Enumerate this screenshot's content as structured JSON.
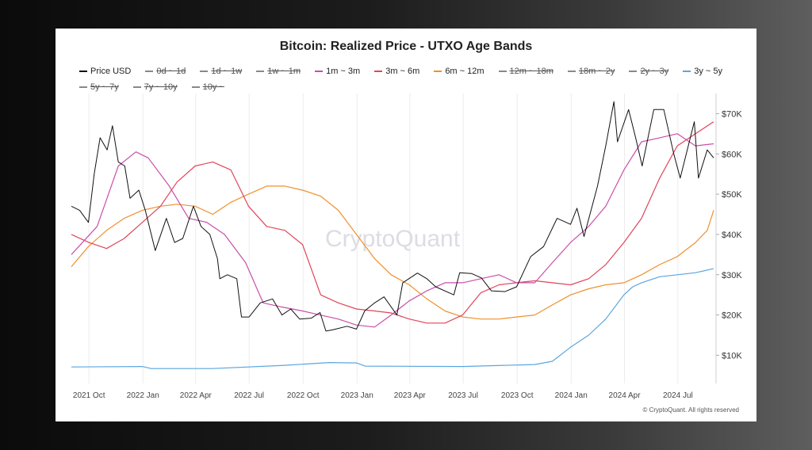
{
  "chart_data": {
    "type": "line",
    "title": "Bitcoin: Realized Price - UTXO Age Bands",
    "x_ticks": [
      "2021 Oct",
      "2022 Jan",
      "2022 Apr",
      "2022 Jul",
      "2022 Oct",
      "2023 Jan",
      "2023 Apr",
      "2023 Jul",
      "2023 Oct",
      "2024 Jan",
      "2024 Apr",
      "2024 Jul"
    ],
    "x_range": [
      "2021-09-01",
      "2024-08-31"
    ],
    "y_ticks": [
      "$10K",
      "$20K",
      "$30K",
      "$40K",
      "$50K",
      "$60K",
      "$70K"
    ],
    "y_tick_values": [
      10000,
      20000,
      30000,
      40000,
      50000,
      60000,
      70000
    ],
    "ylim": [
      3000,
      75000
    ],
    "grid": "vertical",
    "legend_position": "top",
    "legend": [
      {
        "name": "Price USD",
        "active": true,
        "color": "#111111"
      },
      {
        "name": "0d ~ 1d",
        "active": false,
        "color": "#888888"
      },
      {
        "name": "1d ~ 1w",
        "active": false,
        "color": "#888888"
      },
      {
        "name": "1w ~ 1m",
        "active": false,
        "color": "#888888"
      },
      {
        "name": "1m ~ 3m",
        "active": true,
        "color": "#c94fa8"
      },
      {
        "name": "3m ~ 6m",
        "active": true,
        "color": "#e0455a"
      },
      {
        "name": "6m ~ 12m",
        "active": true,
        "color": "#f0902e"
      },
      {
        "name": "12m ~ 18m",
        "active": false,
        "color": "#888888"
      },
      {
        "name": "18m ~ 2y",
        "active": false,
        "color": "#888888"
      },
      {
        "name": "2y ~ 3y",
        "active": false,
        "color": "#888888"
      },
      {
        "name": "3y ~ 5y",
        "active": true,
        "color": "#5aa6e0"
      },
      {
        "name": "5y ~ 7y",
        "active": false,
        "color": "#888888"
      },
      {
        "name": "7y ~ 10y",
        "active": false,
        "color": "#888888"
      },
      {
        "name": "10y ~",
        "active": false,
        "color": "#888888"
      }
    ],
    "series": [
      {
        "name": "Price USD",
        "color": "#111111",
        "points": [
          [
            "2021-09-01",
            47000
          ],
          [
            "2021-09-15",
            46000
          ],
          [
            "2021-09-30",
            43000
          ],
          [
            "2021-10-10",
            55000
          ],
          [
            "2021-10-20",
            64000
          ],
          [
            "2021-11-01",
            61000
          ],
          [
            "2021-11-10",
            67000
          ],
          [
            "2021-11-20",
            58000
          ],
          [
            "2021-12-01",
            57000
          ],
          [
            "2021-12-10",
            49000
          ],
          [
            "2021-12-25",
            51000
          ],
          [
            "2022-01-05",
            46000
          ],
          [
            "2022-01-22",
            36000
          ],
          [
            "2022-02-10",
            44000
          ],
          [
            "2022-02-24",
            38000
          ],
          [
            "2022-03-10",
            39000
          ],
          [
            "2022-03-28",
            47000
          ],
          [
            "2022-04-10",
            42000
          ],
          [
            "2022-04-25",
            40000
          ],
          [
            "2022-05-08",
            34000
          ],
          [
            "2022-05-12",
            29000
          ],
          [
            "2022-05-25",
            30000
          ],
          [
            "2022-06-10",
            29000
          ],
          [
            "2022-06-18",
            19500
          ],
          [
            "2022-07-01",
            19500
          ],
          [
            "2022-07-20",
            23000
          ],
          [
            "2022-08-10",
            24000
          ],
          [
            "2022-08-26",
            20000
          ],
          [
            "2022-09-10",
            21500
          ],
          [
            "2022-09-25",
            19000
          ],
          [
            "2022-10-15",
            19200
          ],
          [
            "2022-10-30",
            20600
          ],
          [
            "2022-11-09",
            16000
          ],
          [
            "2022-11-20",
            16300
          ],
          [
            "2022-12-15",
            17200
          ],
          [
            "2022-12-31",
            16500
          ],
          [
            "2023-01-14",
            21000
          ],
          [
            "2023-01-31",
            23000
          ],
          [
            "2023-02-16",
            24500
          ],
          [
            "2023-03-10",
            20000
          ],
          [
            "2023-03-20",
            28000
          ],
          [
            "2023-04-14",
            30400
          ],
          [
            "2023-04-30",
            29000
          ],
          [
            "2023-05-15",
            27000
          ],
          [
            "2023-06-15",
            25000
          ],
          [
            "2023-06-25",
            30500
          ],
          [
            "2023-07-15",
            30300
          ],
          [
            "2023-08-01",
            29200
          ],
          [
            "2023-08-18",
            26000
          ],
          [
            "2023-09-10",
            25800
          ],
          [
            "2023-09-30",
            27000
          ],
          [
            "2023-10-24",
            34500
          ],
          [
            "2023-11-15",
            37000
          ],
          [
            "2023-12-08",
            44000
          ],
          [
            "2023-12-31",
            42500
          ],
          [
            "2024-01-11",
            46500
          ],
          [
            "2024-01-23",
            39500
          ],
          [
            "2024-02-15",
            52000
          ],
          [
            "2024-02-29",
            62000
          ],
          [
            "2024-03-14",
            73000
          ],
          [
            "2024-03-20",
            63000
          ],
          [
            "2024-04-08",
            71000
          ],
          [
            "2024-04-20",
            64000
          ],
          [
            "2024-05-01",
            57000
          ],
          [
            "2024-05-21",
            71000
          ],
          [
            "2024-06-07",
            71000
          ],
          [
            "2024-06-24",
            60000
          ],
          [
            "2024-07-05",
            54000
          ],
          [
            "2024-07-29",
            68000
          ],
          [
            "2024-08-05",
            54000
          ],
          [
            "2024-08-20",
            61000
          ],
          [
            "2024-08-31",
            59000
          ]
        ]
      },
      {
        "name": "1m ~ 3m",
        "color": "#c94fa8",
        "points": [
          [
            "2021-09-01",
            35000
          ],
          [
            "2021-10-15",
            42000
          ],
          [
            "2021-11-20",
            57000
          ],
          [
            "2021-12-20",
            60500
          ],
          [
            "2022-01-10",
            59000
          ],
          [
            "2022-02-15",
            52000
          ],
          [
            "2022-03-20",
            44000
          ],
          [
            "2022-04-20",
            43000
          ],
          [
            "2022-05-20",
            40000
          ],
          [
            "2022-06-25",
            33000
          ],
          [
            "2022-07-25",
            23000
          ],
          [
            "2022-08-25",
            22000
          ],
          [
            "2022-09-30",
            21000
          ],
          [
            "2022-10-30",
            20000
          ],
          [
            "2022-11-30",
            19000
          ],
          [
            "2022-12-31",
            17500
          ],
          [
            "2023-01-31",
            17000
          ],
          [
            "2023-02-28",
            20000
          ],
          [
            "2023-03-31",
            23500
          ],
          [
            "2023-04-30",
            26000
          ],
          [
            "2023-05-31",
            28000
          ],
          [
            "2023-06-30",
            28000
          ],
          [
            "2023-07-31",
            29000
          ],
          [
            "2023-08-31",
            30000
          ],
          [
            "2023-09-30",
            28000
          ],
          [
            "2023-10-31",
            28000
          ],
          [
            "2023-11-30",
            33000
          ],
          [
            "2023-12-31",
            38000
          ],
          [
            "2024-01-31",
            42000
          ],
          [
            "2024-02-29",
            47000
          ],
          [
            "2024-03-31",
            56000
          ],
          [
            "2024-04-30",
            63000
          ],
          [
            "2024-05-31",
            64000
          ],
          [
            "2024-06-30",
            65000
          ],
          [
            "2024-07-31",
            62000
          ],
          [
            "2024-08-31",
            62500
          ]
        ]
      },
      {
        "name": "3m ~ 6m",
        "color": "#e0455a",
        "points": [
          [
            "2021-09-01",
            40000
          ],
          [
            "2021-10-01",
            38000
          ],
          [
            "2021-10-31",
            36500
          ],
          [
            "2021-11-30",
            39000
          ],
          [
            "2021-12-31",
            43000
          ],
          [
            "2022-01-31",
            47000
          ],
          [
            "2022-02-28",
            53000
          ],
          [
            "2022-03-31",
            57000
          ],
          [
            "2022-04-30",
            58000
          ],
          [
            "2022-05-31",
            56000
          ],
          [
            "2022-06-30",
            47000
          ],
          [
            "2022-07-31",
            42000
          ],
          [
            "2022-08-31",
            41000
          ],
          [
            "2022-09-30",
            37500
          ],
          [
            "2022-10-31",
            25000
          ],
          [
            "2022-11-30",
            23000
          ],
          [
            "2022-12-31",
            21500
          ],
          [
            "2023-01-31",
            21000
          ],
          [
            "2023-02-28",
            20500
          ],
          [
            "2023-03-31",
            19000
          ],
          [
            "2023-04-30",
            18000
          ],
          [
            "2023-05-31",
            18000
          ],
          [
            "2023-06-30",
            20000
          ],
          [
            "2023-07-31",
            25500
          ],
          [
            "2023-08-31",
            27500
          ],
          [
            "2023-09-30",
            28000
          ],
          [
            "2023-10-31",
            28500
          ],
          [
            "2023-11-30",
            28000
          ],
          [
            "2023-12-31",
            27500
          ],
          [
            "2024-01-31",
            29000
          ],
          [
            "2024-02-29",
            32500
          ],
          [
            "2024-03-31",
            38000
          ],
          [
            "2024-04-30",
            44000
          ],
          [
            "2024-05-31",
            54000
          ],
          [
            "2024-06-30",
            62000
          ],
          [
            "2024-07-31",
            65000
          ],
          [
            "2024-08-31",
            68000
          ]
        ]
      },
      {
        "name": "6m ~ 12m",
        "color": "#f0902e",
        "points": [
          [
            "2021-09-01",
            32000
          ],
          [
            "2021-09-30",
            37000
          ],
          [
            "2021-10-31",
            41000
          ],
          [
            "2021-11-30",
            44000
          ],
          [
            "2021-12-31",
            46000
          ],
          [
            "2022-01-31",
            47000
          ],
          [
            "2022-02-28",
            47500
          ],
          [
            "2022-03-31",
            47000
          ],
          [
            "2022-04-30",
            45000
          ],
          [
            "2022-05-31",
            48000
          ],
          [
            "2022-06-30",
            50000
          ],
          [
            "2022-07-31",
            52000
          ],
          [
            "2022-08-31",
            52000
          ],
          [
            "2022-09-30",
            51000
          ],
          [
            "2022-10-31",
            49500
          ],
          [
            "2022-11-30",
            46000
          ],
          [
            "2022-12-31",
            40000
          ],
          [
            "2023-01-31",
            34000
          ],
          [
            "2023-02-28",
            30000
          ],
          [
            "2023-03-31",
            27500
          ],
          [
            "2023-04-30",
            24000
          ],
          [
            "2023-05-31",
            21000
          ],
          [
            "2023-06-30",
            19500
          ],
          [
            "2023-07-31",
            19000
          ],
          [
            "2023-08-31",
            19000
          ],
          [
            "2023-09-30",
            19500
          ],
          [
            "2023-10-31",
            20000
          ],
          [
            "2023-11-30",
            22500
          ],
          [
            "2023-12-31",
            25000
          ],
          [
            "2024-01-31",
            26500
          ],
          [
            "2024-02-29",
            27500
          ],
          [
            "2024-03-31",
            28000
          ],
          [
            "2024-04-30",
            30000
          ],
          [
            "2024-05-31",
            32500
          ],
          [
            "2024-06-30",
            34500
          ],
          [
            "2024-07-31",
            38000
          ],
          [
            "2024-08-20",
            41000
          ],
          [
            "2024-08-31",
            46000
          ]
        ]
      },
      {
        "name": "3y ~ 5y",
        "color": "#5aa6e0",
        "points": [
          [
            "2021-09-01",
            7100
          ],
          [
            "2021-12-31",
            7200
          ],
          [
            "2022-01-15",
            6700
          ],
          [
            "2022-04-30",
            6700
          ],
          [
            "2022-08-31",
            7500
          ],
          [
            "2022-11-15",
            8200
          ],
          [
            "2022-12-31",
            8100
          ],
          [
            "2023-01-15",
            7300
          ],
          [
            "2023-06-30",
            7200
          ],
          [
            "2023-10-31",
            7700
          ],
          [
            "2023-11-30",
            8500
          ],
          [
            "2023-12-31",
            12000
          ],
          [
            "2024-01-31",
            15000
          ],
          [
            "2024-02-29",
            19000
          ],
          [
            "2024-03-31",
            25000
          ],
          [
            "2024-04-15",
            27000
          ],
          [
            "2024-04-30",
            28000
          ],
          [
            "2024-05-31",
            29500
          ],
          [
            "2024-06-30",
            30000
          ],
          [
            "2024-07-31",
            30500
          ],
          [
            "2024-08-31",
            31500
          ]
        ]
      }
    ]
  },
  "watermark": "CryptoQuant",
  "copyright": "© CryptoQuant. All rights reserved"
}
